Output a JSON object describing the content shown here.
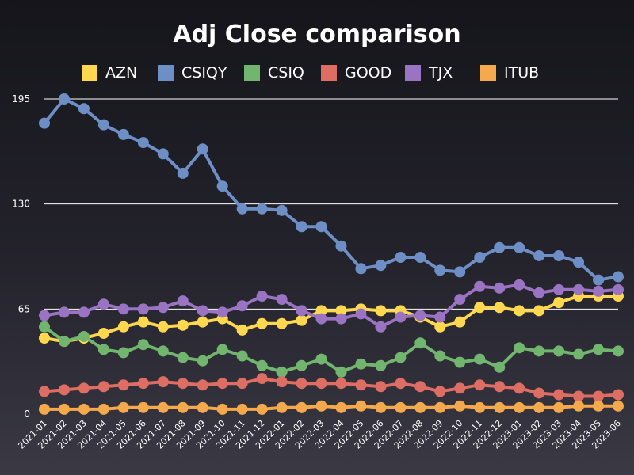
{
  "chart_data": {
    "type": "line",
    "title": "Adj Close comparison",
    "xlabel": "",
    "ylabel": "",
    "ylim": [
      0,
      195
    ],
    "yticks": [
      0,
      65,
      130,
      195
    ],
    "grid": "horizontal",
    "legend_position": "top",
    "x": [
      "2021-01",
      "2021-02",
      "2021-03",
      "2021-04",
      "2021-05",
      "2021-06",
      "2021-07",
      "2021-08",
      "2021-09",
      "2021-10",
      "2021-11",
      "2021-12",
      "2022-01",
      "2022-02",
      "2022-03",
      "2022-04",
      "2022-05",
      "2022-06",
      "2022-07",
      "2022-08",
      "2022-09",
      "2022-10",
      "2022-11",
      "2022-12",
      "2023-01",
      "2023-02",
      "2023-03",
      "2023-04",
      "2023-05",
      "2023-06"
    ],
    "series": [
      {
        "name": "AZN",
        "color": "#ffd84f",
        "values": [
          47,
          45,
          47,
          50,
          54,
          57,
          54,
          55,
          57,
          59,
          52,
          56,
          56,
          58,
          64,
          64,
          65,
          64,
          64,
          60,
          54,
          57,
          66,
          66,
          64,
          64,
          69,
          73,
          73,
          73
        ]
      },
      {
        "name": "CSIQY",
        "color": "#6d8fc6",
        "values": [
          180,
          195,
          189,
          179,
          173,
          168,
          161,
          149,
          164,
          141,
          127,
          127,
          126,
          116,
          116,
          104,
          90,
          92,
          97,
          97,
          89,
          88,
          97,
          103,
          103,
          98,
          98,
          94,
          83,
          85
        ]
      },
      {
        "name": "CSIQ",
        "color": "#72b56e",
        "values": [
          54,
          45,
          48,
          40,
          38,
          43,
          39,
          35,
          33,
          40,
          36,
          30,
          26,
          30,
          34,
          26,
          31,
          30,
          35,
          44,
          36,
          32,
          34,
          29,
          41,
          39,
          39,
          37,
          40,
          39
        ]
      },
      {
        "name": "GOOD",
        "color": "#de6d63",
        "values": [
          14,
          15,
          16,
          17,
          18,
          19,
          20,
          19,
          18,
          19,
          19,
          22,
          20,
          19,
          19,
          19,
          18,
          17,
          19,
          17,
          14,
          16,
          18,
          17,
          16,
          13,
          12,
          11,
          11,
          12
        ]
      },
      {
        "name": "TJX",
        "color": "#9a74c3",
        "values": [
          61,
          63,
          63,
          68,
          65,
          65,
          66,
          70,
          64,
          63,
          67,
          73,
          71,
          64,
          59,
          59,
          62,
          54,
          60,
          61,
          60,
          71,
          79,
          78,
          80,
          75,
          77,
          77,
          76,
          77
        ]
      },
      {
        "name": "ITUB",
        "color": "#f4a94d",
        "values": [
          3,
          3,
          3,
          3,
          4,
          4,
          4,
          4,
          4,
          3,
          3,
          3,
          4,
          4,
          5,
          4,
          5,
          4,
          4,
          4,
          4,
          5,
          4,
          4,
          4,
          4,
          4,
          5,
          5,
          5
        ]
      }
    ]
  }
}
